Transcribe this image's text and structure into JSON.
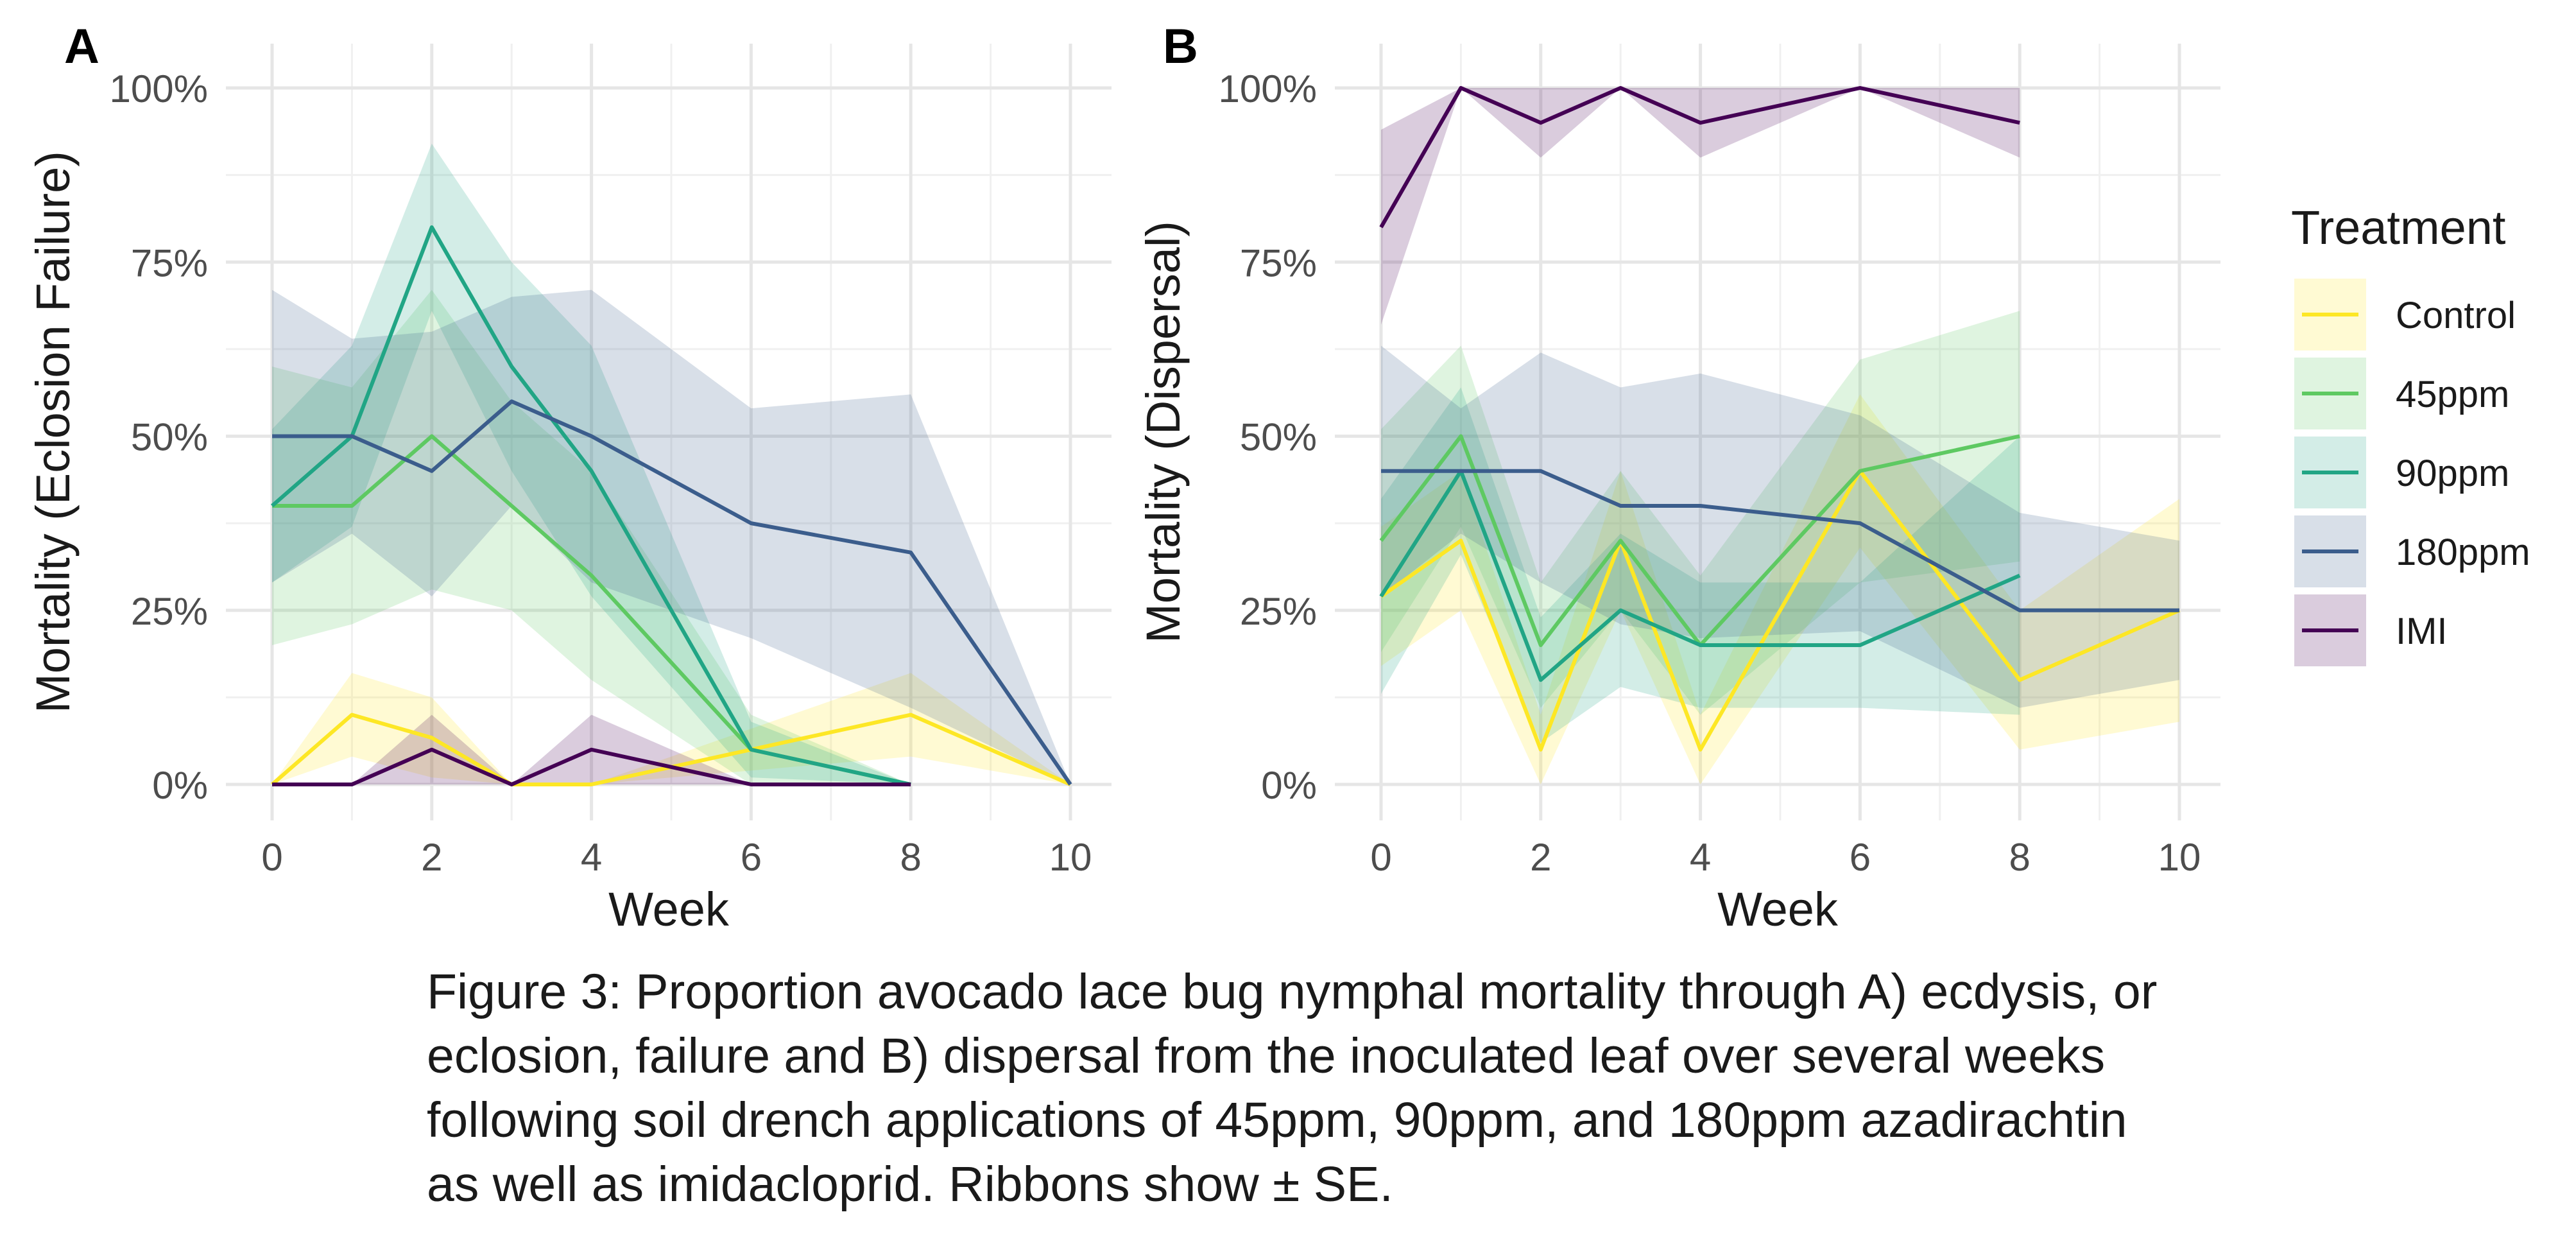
{
  "caption": "Figure 3: Proportion avocado lace bug nymphal mortality through A) ecdysis, or eclosion, failure and B) dispersal from the inoculated leaf over several weeks following soil drench applications of 45ppm, 90ppm, and 180ppm azadirachtin as well as imidacloprid. Ribbons show ± SE.",
  "legend": {
    "title": "Treatment",
    "position": "right",
    "entries": [
      {
        "name": "Control",
        "color": "#FDE725"
      },
      {
        "name": "45ppm",
        "color": "#5EC962"
      },
      {
        "name": "90ppm",
        "color": "#21A585"
      },
      {
        "name": "180ppm",
        "color": "#3B5D8C"
      },
      {
        "name": "IMI",
        "color": "#440154"
      }
    ]
  },
  "chart_data": [
    {
      "panel": "A",
      "type": "line",
      "xlabel": "Week",
      "ylabel": "Mortality (Eclosion Failure)",
      "xlim": [
        0,
        10
      ],
      "ylim": [
        0,
        1
      ],
      "xticks": [
        "0",
        "2",
        "4",
        "6",
        "8",
        "10"
      ],
      "yticks": [
        "0%",
        "25%",
        "50%",
        "75%",
        "100%"
      ],
      "grid": true,
      "ribbons": "± SE",
      "series": [
        {
          "name": "Control",
          "x": [
            0,
            1,
            2,
            3,
            4,
            8,
            10
          ],
          "y": [
            0,
            0.1,
            0.067,
            0,
            0,
            0.1,
            0
          ],
          "lower": [
            0,
            0.04,
            0.01,
            0,
            0,
            0.04,
            0
          ],
          "upper": [
            0,
            0.16,
            0.125,
            0,
            0,
            0.16,
            0
          ]
        },
        {
          "name": "45ppm",
          "x": [
            0,
            1,
            2,
            3,
            4,
            6,
            8
          ],
          "y": [
            0.4,
            0.4,
            0.5,
            0.4,
            0.3,
            0.05,
            0
          ],
          "lower": [
            0.2,
            0.23,
            0.28,
            0.25,
            0.15,
            0,
            0
          ],
          "upper": [
            0.6,
            0.57,
            0.71,
            0.55,
            0.45,
            0.1,
            0
          ]
        },
        {
          "name": "90ppm",
          "x": [
            0,
            1,
            2,
            3,
            4,
            6,
            8
          ],
          "y": [
            0.4,
            0.5,
            0.8,
            0.6,
            0.45,
            0.05,
            0
          ],
          "lower": [
            0.29,
            0.37,
            0.68,
            0.45,
            0.27,
            0.01,
            0
          ],
          "upper": [
            0.51,
            0.63,
            0.92,
            0.75,
            0.63,
            0.09,
            0
          ]
        },
        {
          "name": "180ppm",
          "x": [
            0,
            1,
            2,
            3,
            4,
            6,
            8,
            10
          ],
          "y": [
            0.5,
            0.5,
            0.45,
            0.55,
            0.5,
            0.375,
            0.333,
            0
          ],
          "lower": [
            0.29,
            0.36,
            0.27,
            0.4,
            0.29,
            0.21,
            0.11,
            0
          ],
          "upper": [
            0.71,
            0.64,
            0.65,
            0.7,
            0.71,
            0.54,
            0.56,
            0
          ]
        },
        {
          "name": "IMI",
          "x": [
            0,
            1,
            2,
            3,
            4,
            6,
            8
          ],
          "y": [
            0,
            0,
            0.05,
            0,
            0.05,
            0,
            0
          ],
          "lower": [
            0,
            0,
            0,
            0,
            0,
            0,
            0
          ],
          "upper": [
            0,
            0,
            0.1,
            0,
            0.1,
            0,
            0
          ]
        }
      ]
    },
    {
      "panel": "B",
      "type": "line",
      "xlabel": "Week",
      "ylabel": "Mortality (Dispersal)",
      "xlim": [
        0,
        10
      ],
      "ylim": [
        0,
        1
      ],
      "xticks": [
        "0",
        "2",
        "4",
        "6",
        "8",
        "10"
      ],
      "yticks": [
        "0%",
        "25%",
        "50%",
        "75%",
        "100%"
      ],
      "grid": true,
      "ribbons": "± SE",
      "series": [
        {
          "name": "Control",
          "x": [
            0,
            1,
            2,
            3,
            4,
            6,
            8,
            10
          ],
          "y": [
            0.27,
            0.35,
            0.05,
            0.35,
            0.05,
            0.45,
            0.15,
            0.25
          ],
          "lower": [
            0.17,
            0.25,
            0,
            0.25,
            0,
            0.34,
            0.05,
            0.09
          ],
          "upper": [
            0.37,
            0.45,
            0.1,
            0.45,
            0.1,
            0.56,
            0.25,
            0.41
          ]
        },
        {
          "name": "45ppm",
          "x": [
            0,
            1,
            2,
            3,
            4,
            6,
            8
          ],
          "y": [
            0.35,
            0.5,
            0.2,
            0.35,
            0.2,
            0.45,
            0.5
          ],
          "lower": [
            0.19,
            0.37,
            0.11,
            0.25,
            0.1,
            0.29,
            0.32
          ],
          "upper": [
            0.51,
            0.63,
            0.29,
            0.45,
            0.3,
            0.61,
            0.68
          ]
        },
        {
          "name": "90ppm",
          "x": [
            0,
            1,
            2,
            3,
            4,
            6,
            8
          ],
          "y": [
            0.27,
            0.45,
            0.15,
            0.25,
            0.2,
            0.2,
            0.3
          ],
          "lower": [
            0.13,
            0.33,
            0.06,
            0.14,
            0.11,
            0.11,
            0.1
          ],
          "upper": [
            0.41,
            0.57,
            0.24,
            0.36,
            0.29,
            0.29,
            0.5
          ]
        },
        {
          "name": "180ppm",
          "x": [
            0,
            1,
            2,
            3,
            4,
            6,
            8,
            10
          ],
          "y": [
            0.45,
            0.45,
            0.45,
            0.4,
            0.4,
            0.375,
            0.25,
            0.25
          ],
          "lower": [
            0.27,
            0.36,
            0.29,
            0.23,
            0.21,
            0.22,
            0.11,
            0.15
          ],
          "upper": [
            0.63,
            0.54,
            0.62,
            0.57,
            0.59,
            0.53,
            0.39,
            0.35
          ]
        },
        {
          "name": "IMI",
          "x": [
            0,
            1,
            2,
            3,
            4,
            6,
            8
          ],
          "y": [
            0.8,
            1.0,
            0.95,
            1.0,
            0.95,
            1.0,
            0.95
          ],
          "lower": [
            0.66,
            1.0,
            0.9,
            1.0,
            0.9,
            1.0,
            0.9
          ],
          "upper": [
            0.94,
            1.0,
            1.0,
            1.0,
            1.0,
            1.0,
            1.0
          ]
        }
      ]
    }
  ]
}
